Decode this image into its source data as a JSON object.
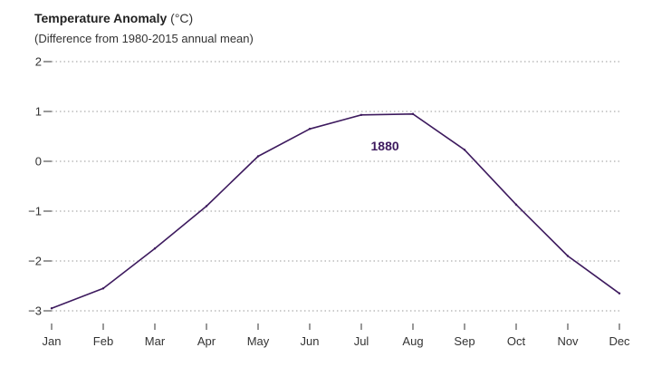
{
  "chart_data": {
    "type": "line",
    "title": "Temperature Anomaly",
    "title_unit": "(°C)",
    "subtitle": "(Difference from 1980-2015 annual mean)",
    "categories": [
      "Jan",
      "Feb",
      "Mar",
      "Apr",
      "May",
      "Jun",
      "Jul",
      "Aug",
      "Sep",
      "Oct",
      "Nov",
      "Dec"
    ],
    "series": [
      {
        "name": "1880",
        "values": [
          -2.95,
          -2.55,
          -1.75,
          -0.9,
          0.1,
          0.65,
          0.93,
          0.95,
          0.23,
          -0.87,
          -1.9,
          -2.65
        ]
      }
    ],
    "yticks": [
      "2",
      "1",
      "0",
      "−1",
      "−2",
      "−3"
    ],
    "ytick_values": [
      2,
      1,
      0,
      -1,
      -2,
      -3
    ],
    "ylim": [
      -3,
      2
    ],
    "grid": true,
    "grid_style": "dotted",
    "series_label_placement": "near-peak",
    "colors": {
      "line": "#3d1a5e",
      "label": "#3d1a5e",
      "grid": "#999999",
      "axis_text": "#333333"
    }
  }
}
